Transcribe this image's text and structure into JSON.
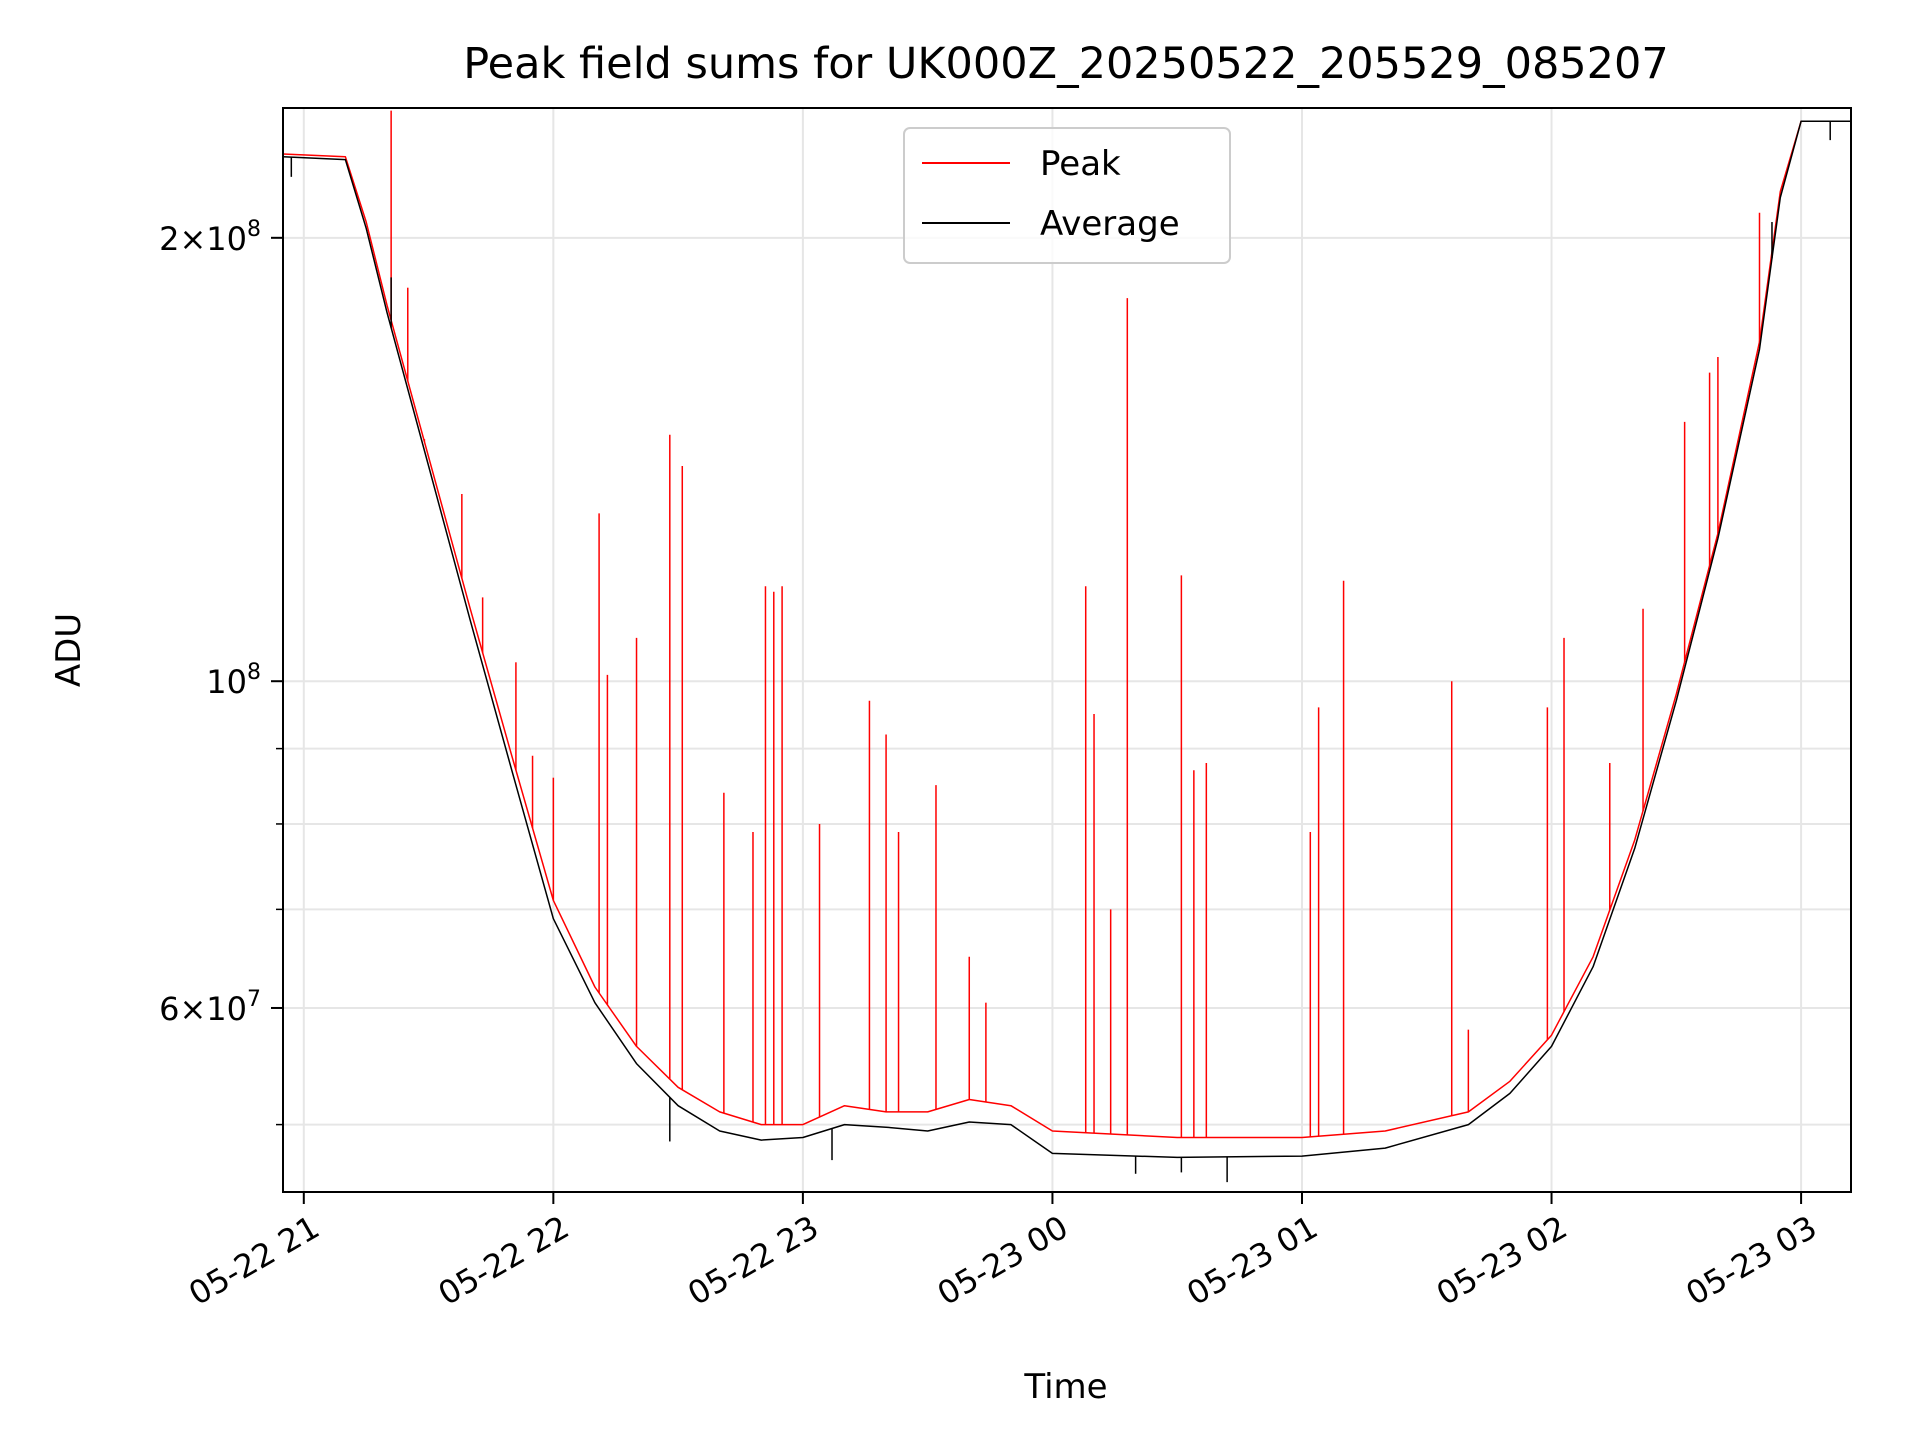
{
  "chart_data": {
    "type": "line",
    "title": "Peak field sums for UK000Z_20250522_205529_085207",
    "xlabel": "Time",
    "ylabel": "ADU",
    "y_scale": "log",
    "ylim": [
      45000000,
      245000000
    ],
    "xlim": [
      "2025-05-22 20:55",
      "2025-05-23 03:12"
    ],
    "x_ticks": [
      {
        "value": "2025-05-22 21:00",
        "label": "05-22 21"
      },
      {
        "value": "2025-05-22 22:00",
        "label": "05-22 22"
      },
      {
        "value": "2025-05-22 23:00",
        "label": "05-22 23"
      },
      {
        "value": "2025-05-23 00:00",
        "label": "05-23 00"
      },
      {
        "value": "2025-05-23 01:00",
        "label": "05-23 01"
      },
      {
        "value": "2025-05-23 02:00",
        "label": "05-23 02"
      },
      {
        "value": "2025-05-23 03:00",
        "label": "05-23 03"
      }
    ],
    "y_major_ticks": [
      {
        "value": 200000000,
        "mantissa": "2",
        "exponent": "8"
      },
      {
        "value": 100000000,
        "mantissa": "",
        "exponent": "8"
      },
      {
        "value": 60000000,
        "mantissa": "6",
        "exponent": "7"
      }
    ],
    "y_minor_ticks": [
      50000000,
      70000000,
      80000000,
      90000000
    ],
    "grid": true,
    "legend_position": "top-center",
    "series": [
      {
        "name": "Peak",
        "color": "#ff0000",
        "baseline": [
          [
            "2025-05-22 20:55",
            228000000
          ],
          [
            "2025-05-22 21:10",
            227000000
          ],
          [
            "2025-05-22 21:15",
            205000000
          ],
          [
            "2025-05-22 21:20",
            180000000
          ],
          [
            "2025-05-22 21:30",
            142000000
          ],
          [
            "2025-05-22 21:40",
            112000000
          ],
          [
            "2025-05-22 21:50",
            89000000
          ],
          [
            "2025-05-22 22:00",
            71000000
          ],
          [
            "2025-05-22 22:10",
            62000000
          ],
          [
            "2025-05-22 22:20",
            56500000
          ],
          [
            "2025-05-22 22:30",
            53000000
          ],
          [
            "2025-05-22 22:40",
            51000000
          ],
          [
            "2025-05-22 22:50",
            50000000
          ],
          [
            "2025-05-22 23:00",
            50000000
          ],
          [
            "2025-05-22 23:10",
            51500000
          ],
          [
            "2025-05-22 23:20",
            51000000
          ],
          [
            "2025-05-22 23:30",
            51000000
          ],
          [
            "2025-05-22 23:40",
            52000000
          ],
          [
            "2025-05-22 23:50",
            51500000
          ],
          [
            "2025-05-23 00:00",
            49500000
          ],
          [
            "2025-05-23 00:30",
            49000000
          ],
          [
            "2025-05-23 01:00",
            49000000
          ],
          [
            "2025-05-23 01:20",
            49500000
          ],
          [
            "2025-05-23 01:40",
            51000000
          ],
          [
            "2025-05-23 01:50",
            53500000
          ],
          [
            "2025-05-23 02:00",
            57500000
          ],
          [
            "2025-05-23 02:10",
            65000000
          ],
          [
            "2025-05-23 02:20",
            78000000
          ],
          [
            "2025-05-23 02:30",
            98000000
          ],
          [
            "2025-05-23 02:40",
            126000000
          ],
          [
            "2025-05-23 02:50",
            170000000
          ],
          [
            "2025-05-23 02:55",
            215000000
          ],
          [
            "2025-05-23 03:00",
            240000000
          ],
          [
            "2025-05-23 03:12",
            240000000
          ]
        ],
        "spikes": [
          [
            "2025-05-22 21:21",
            244000000
          ],
          [
            "2025-05-22 21:25",
            185000000
          ],
          [
            "2025-05-22 21:29",
            146000000
          ],
          [
            "2025-05-22 21:38",
            134000000
          ],
          [
            "2025-05-22 21:43",
            114000000
          ],
          [
            "2025-05-22 21:51",
            103000000
          ],
          [
            "2025-05-22 21:55",
            89000000
          ],
          [
            "2025-05-22 22:00",
            86000000
          ],
          [
            "2025-05-22 22:11",
            130000000
          ],
          [
            "2025-05-22 22:13",
            101000000
          ],
          [
            "2025-05-22 22:20",
            107000000
          ],
          [
            "2025-05-22 22:28",
            147000000
          ],
          [
            "2025-05-22 22:31",
            140000000
          ],
          [
            "2025-05-22 22:41",
            84000000
          ],
          [
            "2025-05-22 22:48",
            79000000
          ],
          [
            "2025-05-22 22:51",
            116000000
          ],
          [
            "2025-05-22 22:53",
            115000000
          ],
          [
            "2025-05-22 22:55",
            116000000
          ],
          [
            "2025-05-22 23:04",
            80000000
          ],
          [
            "2025-05-22 23:16",
            97000000
          ],
          [
            "2025-05-22 23:20",
            92000000
          ],
          [
            "2025-05-22 23:23",
            79000000
          ],
          [
            "2025-05-22 23:32",
            85000000
          ],
          [
            "2025-05-22 23:40",
            65000000
          ],
          [
            "2025-05-22 23:44",
            60500000
          ],
          [
            "2025-05-23 00:08",
            116000000
          ],
          [
            "2025-05-23 00:10",
            95000000
          ],
          [
            "2025-05-23 00:14",
            70000000
          ],
          [
            "2025-05-23 00:18",
            182000000
          ],
          [
            "2025-05-23 00:31",
            118000000
          ],
          [
            "2025-05-23 00:34",
            87000000
          ],
          [
            "2025-05-23 00:37",
            88000000
          ],
          [
            "2025-05-23 01:02",
            79000000
          ],
          [
            "2025-05-23 01:04",
            96000000
          ],
          [
            "2025-05-23 01:10",
            117000000
          ],
          [
            "2025-05-23 01:36",
            100000000
          ],
          [
            "2025-05-23 01:40",
            58000000
          ],
          [
            "2025-05-23 01:59",
            96000000
          ],
          [
            "2025-05-23 02:03",
            107000000
          ],
          [
            "2025-05-23 02:14",
            88000000
          ],
          [
            "2025-05-23 02:22",
            112000000
          ],
          [
            "2025-05-23 02:32",
            150000000
          ],
          [
            "2025-05-23 02:38",
            162000000
          ],
          [
            "2025-05-23 02:40",
            166000000
          ],
          [
            "2025-05-23 02:50",
            208000000
          ]
        ]
      },
      {
        "name": "Average",
        "color": "#000000",
        "baseline": [
          [
            "2025-05-22 20:55",
            227000000
          ],
          [
            "2025-05-22 21:10",
            226000000
          ],
          [
            "2025-05-22 21:15",
            203000000
          ],
          [
            "2025-05-22 21:20",
            178000000
          ],
          [
            "2025-05-22 21:30",
            140000000
          ],
          [
            "2025-05-22 21:40",
            110000000
          ],
          [
            "2025-05-22 21:50",
            87000000
          ],
          [
            "2025-05-22 22:00",
            69000000
          ],
          [
            "2025-05-22 22:10",
            60500000
          ],
          [
            "2025-05-22 22:20",
            55000000
          ],
          [
            "2025-05-22 22:30",
            51500000
          ],
          [
            "2025-05-22 22:40",
            49500000
          ],
          [
            "2025-05-22 22:50",
            48800000
          ],
          [
            "2025-05-22 23:00",
            49000000
          ],
          [
            "2025-05-22 23:10",
            50000000
          ],
          [
            "2025-05-22 23:20",
            49800000
          ],
          [
            "2025-05-22 23:30",
            49500000
          ],
          [
            "2025-05-22 23:40",
            50200000
          ],
          [
            "2025-05-22 23:50",
            50000000
          ],
          [
            "2025-05-23 00:00",
            47800000
          ],
          [
            "2025-05-23 00:30",
            47500000
          ],
          [
            "2025-05-23 01:00",
            47600000
          ],
          [
            "2025-05-23 01:20",
            48200000
          ],
          [
            "2025-05-23 01:40",
            50000000
          ],
          [
            "2025-05-23 01:50",
            52500000
          ],
          [
            "2025-05-23 02:00",
            56500000
          ],
          [
            "2025-05-23 02:10",
            64000000
          ],
          [
            "2025-05-23 02:20",
            77000000
          ],
          [
            "2025-05-23 02:30",
            97000000
          ],
          [
            "2025-05-23 02:40",
            125000000
          ],
          [
            "2025-05-23 02:50",
            168000000
          ],
          [
            "2025-05-23 02:55",
            213000000
          ],
          [
            "2025-05-23 03:00",
            240000000
          ],
          [
            "2025-05-23 03:12",
            240000000
          ]
        ],
        "dips": [
          [
            "2025-05-22 20:57",
            220000000
          ],
          [
            "2025-05-22 21:21",
            188000000
          ],
          [
            "2025-05-22 22:28",
            48700000
          ],
          [
            "2025-05-22 23:07",
            47300000
          ],
          [
            "2025-05-23 00:20",
            46300000
          ],
          [
            "2025-05-23 00:31",
            46400000
          ],
          [
            "2025-05-23 00:42",
            45700000
          ],
          [
            "2025-05-23 02:53",
            205000000
          ],
          [
            "2025-05-23 03:07",
            233000000
          ]
        ]
      }
    ]
  }
}
